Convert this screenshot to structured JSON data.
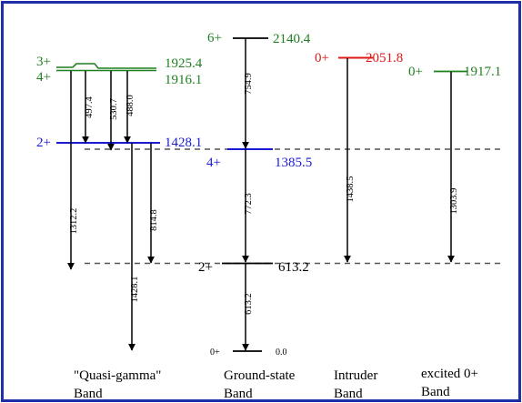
{
  "diagram": {
    "colors": {
      "frame": "#1e2fa8",
      "green": "#1f7f1f",
      "blue": "#1a1ad6",
      "red": "#e01818",
      "black": "#000000",
      "dashed": "#555555"
    },
    "levels": {
      "gs_0": {
        "spin": "0+",
        "energy": "0.0"
      },
      "gs_2": {
        "spin": "2+",
        "energy": "613.2"
      },
      "gs_4": {
        "spin": "4+",
        "energy": "1385.5"
      },
      "gs_6": {
        "spin": "6+",
        "energy": "2140.4"
      },
      "qg_2": {
        "spin": "2+",
        "energy": "1428.1"
      },
      "qg_3": {
        "spin": "3+",
        "energy": "1925.4"
      },
      "qg_4": {
        "spin": "4+",
        "energy": "1916.1"
      },
      "intruder_0": {
        "spin": "0+",
        "energy": "2051.8"
      },
      "excited_0": {
        "spin": "0+",
        "energy": "1917.1"
      }
    },
    "gammas": {
      "g497": "497.4",
      "g530": "530.7",
      "g488": "488.0",
      "g1312": "1312.2",
      "g814": "814.8",
      "g1428": "1428.1",
      "g754": "754.9",
      "g772": "772.3",
      "g613": "613.2",
      "g1438": "1438.5",
      "g1303": "1303.9"
    },
    "bands": {
      "quasi_gamma": {
        "line1": "\"Quasi-gamma\"",
        "line2": "Band"
      },
      "ground_state": {
        "line1": "Ground-state",
        "line2": "Band"
      },
      "intruder": {
        "line1": "Intruder",
        "line2": "Band"
      },
      "excited": {
        "line1": "excited 0+",
        "line2": "Band"
      }
    }
  }
}
